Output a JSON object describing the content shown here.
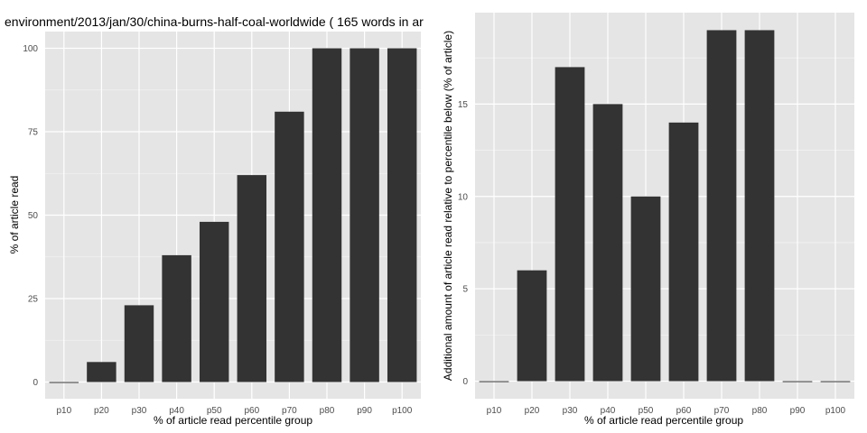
{
  "chart_data": [
    {
      "type": "bar",
      "title": "environment/2013/jan/30/china-burns-half-coal-worldwide ( 165 words in ar",
      "xlabel": "% of article read percentile group",
      "ylabel": "% of article read",
      "categories": [
        "p10",
        "p20",
        "p30",
        "p40",
        "p50",
        "p60",
        "p70",
        "p80",
        "p90",
        "p100"
      ],
      "values": [
        0,
        6,
        23,
        38,
        48,
        62,
        81,
        100,
        100,
        100
      ],
      "ylim": [
        -5,
        105
      ],
      "yticks": [
        0,
        25,
        50,
        75,
        100
      ],
      "grid": true,
      "bar_color": "#333333",
      "panel_color": "#e5e5e5"
    },
    {
      "type": "bar",
      "title": "",
      "xlabel": "% of article read percentile group",
      "ylabel": "Additional amount of article read relative to percentile below (% of article)",
      "categories": [
        "p10",
        "p20",
        "p30",
        "p40",
        "p50",
        "p60",
        "p70",
        "p80",
        "p90",
        "p100"
      ],
      "values": [
        0,
        6,
        17,
        15,
        10,
        14,
        19,
        19,
        0,
        0
      ],
      "ylim": [
        -0.95,
        19.95
      ],
      "yticks": [
        0,
        5,
        10,
        15
      ],
      "grid": true,
      "bar_color": "#333333",
      "panel_color": "#e5e5e5"
    }
  ]
}
